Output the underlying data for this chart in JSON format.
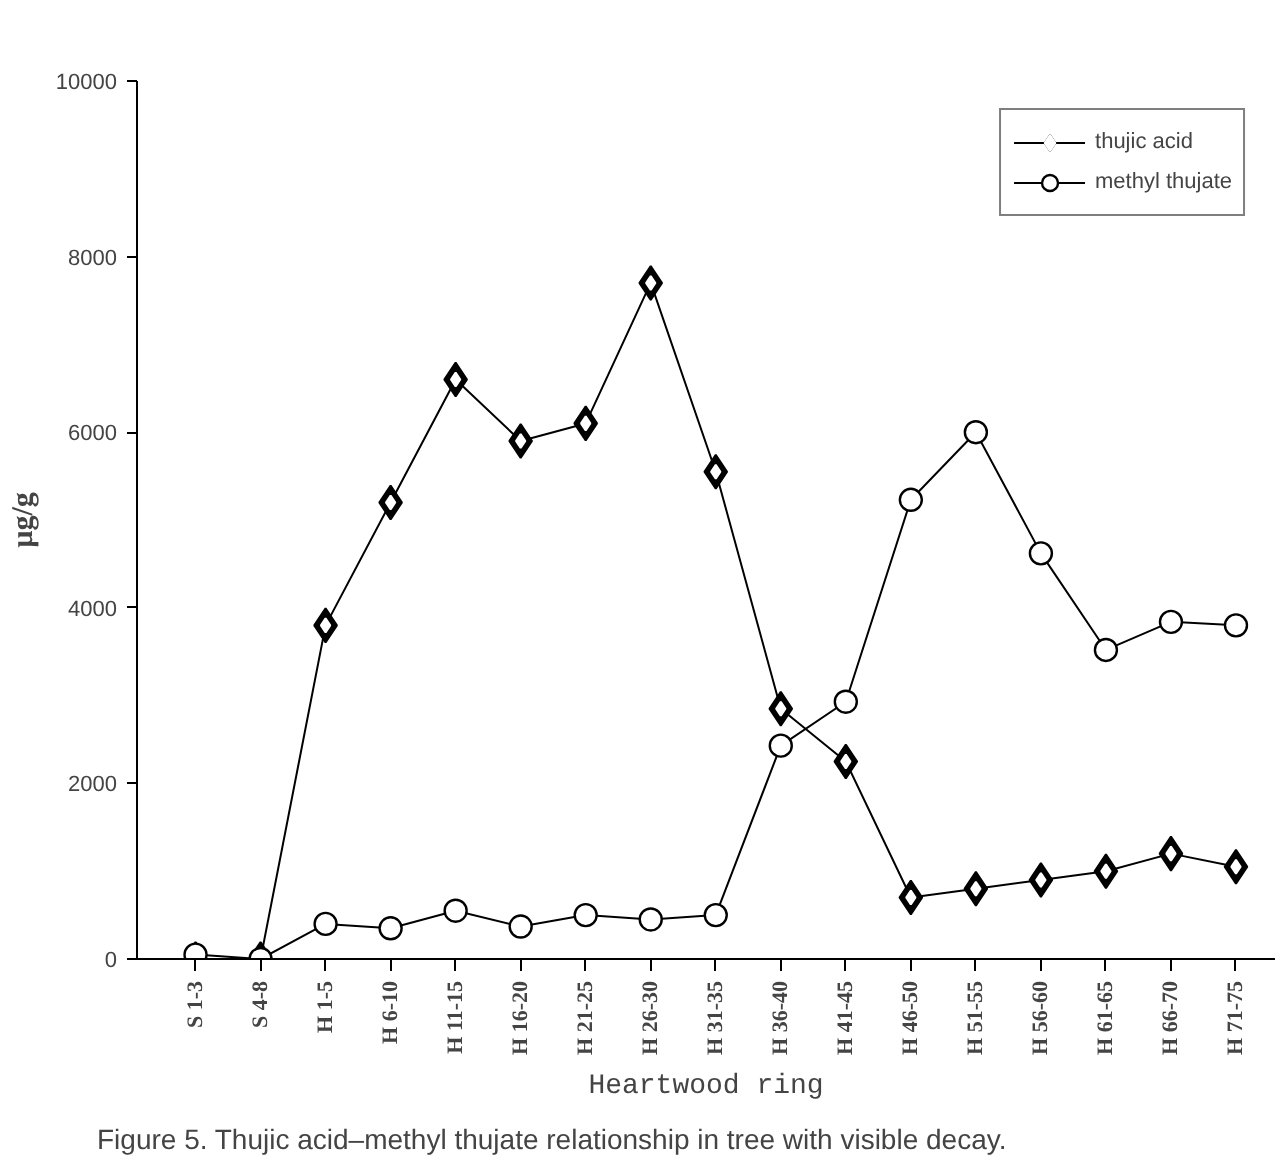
{
  "chart_data": {
    "type": "line",
    "xlabel": "Heartwood ring",
    "ylabel": "µg/g",
    "annotations": [
      "Figure 5. Thujic acid–methyl thujate relationship in tree with visible decay."
    ],
    "categories": [
      "S 1-3",
      "S 4-8",
      "H 1-5",
      "H 6-10",
      "H 11-15",
      "H 16-20",
      "H 21-25",
      "H 26-30",
      "H 31-35",
      "H 36-40",
      "H 41-45",
      "H 46-50",
      "H 51-55",
      "H 56-60",
      "H 61-65",
      "H 66-70",
      "H 71-75"
    ],
    "series": [
      {
        "name": "thujic acid",
        "color": "#000000",
        "marker": "diamond",
        "values": [
          0,
          0,
          3800,
          5200,
          6600,
          5900,
          6100,
          7700,
          5550,
          2850,
          2250,
          700,
          800,
          900,
          1000,
          1200,
          1050
        ]
      },
      {
        "name": "methyl thujate",
        "color": "#000000",
        "marker": "circle",
        "values": [
          50,
          0,
          400,
          350,
          550,
          370,
          500,
          450,
          500,
          2430,
          2930,
          5230,
          6000,
          4620,
          3520,
          3840,
          3800
        ]
      }
    ],
    "ylim": [
      0,
      10000
    ],
    "yticks": [
      0,
      2000,
      4000,
      6000,
      8000,
      10000
    ],
    "grid": false,
    "legend": "top right",
    "line_style": "solid"
  }
}
